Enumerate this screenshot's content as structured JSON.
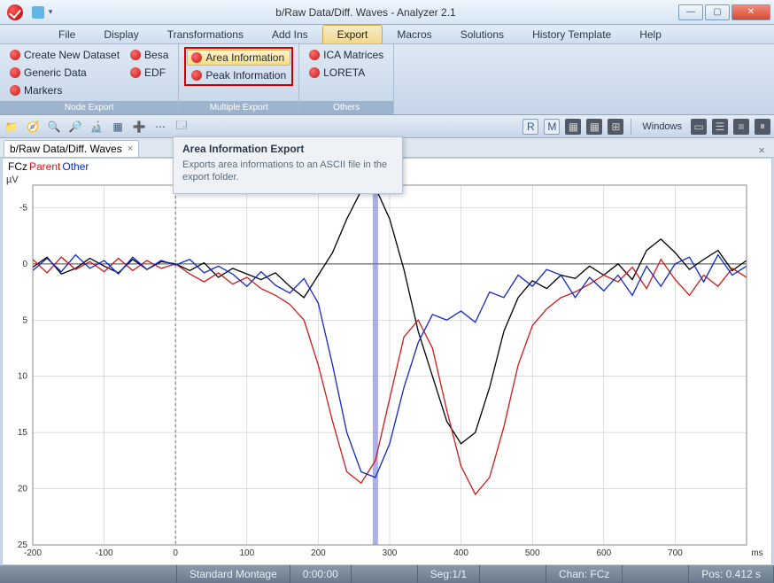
{
  "window": {
    "title": "b/Raw Data/Diff. Waves - Analyzer 2.1"
  },
  "menu": {
    "tabs": [
      "File",
      "Display",
      "Transformations",
      "Add Ins",
      "Export",
      "Macros",
      "Solutions",
      "History Template",
      "Help"
    ],
    "active": 4
  },
  "ribbon": {
    "groups": [
      {
        "label": "Node Export",
        "layout": "columns",
        "cols": [
          [
            {
              "t": "Create New Dataset"
            },
            {
              "t": "Generic Data"
            },
            {
              "t": "Markers"
            }
          ],
          [
            {
              "t": "Besa"
            },
            {
              "t": "EDF"
            }
          ]
        ]
      },
      {
        "label": "Multiple Export",
        "layout": "redboxed",
        "items": [
          {
            "t": "Area Information",
            "hl": true
          },
          {
            "t": "Peak Information"
          }
        ]
      },
      {
        "label": "Others",
        "layout": "single",
        "items": [
          {
            "t": "ICA Matrices"
          },
          {
            "t": "LORETA"
          }
        ]
      }
    ]
  },
  "tooltip": {
    "title": "Area Information Export",
    "body": "Exports area informations to an ASCII file in the export folder."
  },
  "toolbar": {
    "left_icons": [
      "📁",
      "🧭",
      "🔍",
      "🔎",
      "🔬",
      "▦",
      "➕",
      "⋯",
      "🗔"
    ],
    "right_label": "Windows",
    "right_icons": [
      "▭",
      "☰",
      "≡",
      "⏸"
    ],
    "mid_icons": [
      "R",
      "M",
      "▦",
      "▦",
      "⊞"
    ]
  },
  "doctab": {
    "label": "b/Raw Data/Diff. Waves"
  },
  "legend": {
    "ch": "FCz",
    "parent": "Parent",
    "other": "Other",
    "ch_color": "#000000",
    "parent_color": "#d01818",
    "other_color": "#1028c8"
  },
  "chart": {
    "type": "line",
    "xlim": [
      -200,
      800
    ],
    "ylim_top": -7,
    "ylim_bottom": 25,
    "xticks": [
      -200,
      -100,
      0,
      100,
      200,
      300,
      400,
      500,
      600,
      700
    ],
    "yticks": [
      -5,
      0,
      5,
      10,
      15,
      20,
      25
    ],
    "xunit": "ms",
    "yunit": "µV",
    "background": "#ffffff",
    "grid_color": "#bfbfbf",
    "zero_x_dashed": true,
    "marker_x": 280,
    "marker_color": "#6a6ed8",
    "marker_width": 6,
    "line_width": 1.3,
    "series": [
      {
        "name": "FCz",
        "color": "#000000",
        "data": [
          [
            -200,
            0.3
          ],
          [
            -180,
            -0.6
          ],
          [
            -160,
            0.9
          ],
          [
            -140,
            0.4
          ],
          [
            -120,
            -0.5
          ],
          [
            -100,
            0.2
          ],
          [
            -80,
            0.8
          ],
          [
            -60,
            -0.4
          ],
          [
            -40,
            0.5
          ],
          [
            -20,
            -0.2
          ],
          [
            0,
            0.0
          ],
          [
            20,
            0.6
          ],
          [
            40,
            -0.1
          ],
          [
            60,
            1.2
          ],
          [
            80,
            0.4
          ],
          [
            100,
            0.9
          ],
          [
            120,
            1.4
          ],
          [
            140,
            0.8
          ],
          [
            160,
            2.0
          ],
          [
            180,
            3.0
          ],
          [
            200,
            1.0
          ],
          [
            220,
            -1.0
          ],
          [
            240,
            -4.0
          ],
          [
            260,
            -6.5
          ],
          [
            280,
            -6.8
          ],
          [
            300,
            -4.0
          ],
          [
            320,
            0.5
          ],
          [
            340,
            6.0
          ],
          [
            360,
            10.0
          ],
          [
            380,
            14.0
          ],
          [
            400,
            16.0
          ],
          [
            420,
            15.0
          ],
          [
            440,
            11.0
          ],
          [
            460,
            6.0
          ],
          [
            480,
            3.0
          ],
          [
            500,
            1.5
          ],
          [
            520,
            2.2
          ],
          [
            540,
            1.0
          ],
          [
            560,
            1.3
          ],
          [
            580,
            0.2
          ],
          [
            600,
            1.0
          ],
          [
            620,
            0.0
          ],
          [
            640,
            1.4
          ],
          [
            660,
            -1.2
          ],
          [
            680,
            -2.2
          ],
          [
            700,
            -1.0
          ],
          [
            720,
            0.5
          ],
          [
            740,
            -0.4
          ],
          [
            760,
            -1.2
          ],
          [
            780,
            0.6
          ],
          [
            800,
            -0.3
          ]
        ]
      },
      {
        "name": "Parent",
        "color": "#d01818",
        "data": [
          [
            -200,
            -0.4
          ],
          [
            -180,
            0.8
          ],
          [
            -160,
            -0.6
          ],
          [
            -140,
            0.5
          ],
          [
            -120,
            -0.2
          ],
          [
            -100,
            0.7
          ],
          [
            -80,
            -0.5
          ],
          [
            -60,
            0.6
          ],
          [
            -40,
            -0.3
          ],
          [
            -20,
            0.4
          ],
          [
            0,
            0.0
          ],
          [
            20,
            0.9
          ],
          [
            40,
            1.6
          ],
          [
            60,
            0.8
          ],
          [
            80,
            1.8
          ],
          [
            100,
            1.2
          ],
          [
            120,
            2.2
          ],
          [
            140,
            2.8
          ],
          [
            160,
            3.6
          ],
          [
            180,
            5.0
          ],
          [
            200,
            9.0
          ],
          [
            220,
            14.0
          ],
          [
            240,
            18.5
          ],
          [
            260,
            19.5
          ],
          [
            280,
            17.5
          ],
          [
            300,
            12.0
          ],
          [
            320,
            6.5
          ],
          [
            340,
            5.0
          ],
          [
            360,
            7.5
          ],
          [
            380,
            13.0
          ],
          [
            400,
            18.0
          ],
          [
            420,
            20.5
          ],
          [
            440,
            19.0
          ],
          [
            460,
            14.5
          ],
          [
            480,
            9.0
          ],
          [
            500,
            5.5
          ],
          [
            520,
            4.0
          ],
          [
            540,
            3.0
          ],
          [
            560,
            2.5
          ],
          [
            580,
            1.8
          ],
          [
            600,
            1.0
          ],
          [
            620,
            1.6
          ],
          [
            640,
            0.3
          ],
          [
            660,
            2.2
          ],
          [
            680,
            -0.4
          ],
          [
            700,
            1.4
          ],
          [
            720,
            2.8
          ],
          [
            740,
            1.0
          ],
          [
            760,
            2.0
          ],
          [
            780,
            0.4
          ],
          [
            800,
            1.2
          ]
        ]
      },
      {
        "name": "Other",
        "color": "#1028c8",
        "data": [
          [
            -200,
            0.6
          ],
          [
            -180,
            -0.5
          ],
          [
            -160,
            0.7
          ],
          [
            -140,
            -0.8
          ],
          [
            -120,
            0.4
          ],
          [
            -100,
            -0.3
          ],
          [
            -80,
            0.9
          ],
          [
            -60,
            -0.6
          ],
          [
            -40,
            0.5
          ],
          [
            -20,
            -0.3
          ],
          [
            0,
            0.1
          ],
          [
            20,
            -0.4
          ],
          [
            40,
            0.8
          ],
          [
            60,
            0.2
          ],
          [
            80,
            0.9
          ],
          [
            100,
            2.0
          ],
          [
            120,
            0.7
          ],
          [
            140,
            1.9
          ],
          [
            160,
            2.6
          ],
          [
            180,
            1.3
          ],
          [
            200,
            3.5
          ],
          [
            220,
            9.0
          ],
          [
            240,
            15.0
          ],
          [
            260,
            18.5
          ],
          [
            280,
            19.0
          ],
          [
            300,
            16.0
          ],
          [
            320,
            11.0
          ],
          [
            340,
            7.0
          ],
          [
            360,
            4.5
          ],
          [
            380,
            5.0
          ],
          [
            400,
            4.2
          ],
          [
            420,
            5.2
          ],
          [
            440,
            2.5
          ],
          [
            460,
            3.0
          ],
          [
            480,
            1.0
          ],
          [
            500,
            2.0
          ],
          [
            520,
            0.5
          ],
          [
            540,
            1.0
          ],
          [
            560,
            3.0
          ],
          [
            580,
            1.2
          ],
          [
            600,
            2.4
          ],
          [
            620,
            1.0
          ],
          [
            640,
            2.8
          ],
          [
            660,
            0.2
          ],
          [
            680,
            2.0
          ],
          [
            700,
            0.0
          ],
          [
            720,
            -0.6
          ],
          [
            740,
            1.6
          ],
          [
            760,
            -0.8
          ],
          [
            780,
            1.0
          ],
          [
            800,
            0.2
          ]
        ]
      }
    ]
  },
  "status": {
    "montage": "Standard Montage",
    "time": "0:00:00",
    "seg": "Seg:1/1",
    "chan": "Chan:  FCz",
    "pos": "Pos:  0.412 s"
  }
}
